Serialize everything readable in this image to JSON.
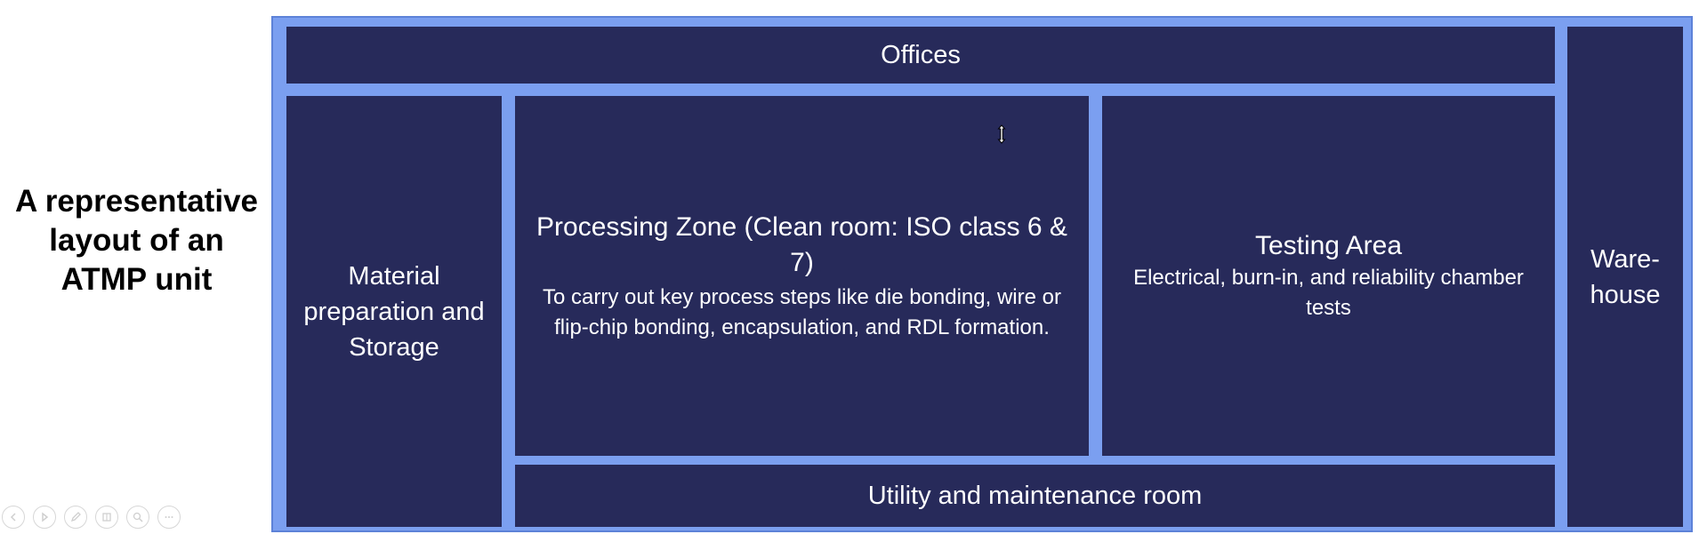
{
  "side_title": "A representative layout of an ATMP unit",
  "blocks": {
    "offices": "Offices",
    "material": "Material preparation and Storage",
    "processing": {
      "title": "Processing Zone (Clean room: ISO class 6 & 7)",
      "description": "To carry out key process steps like die bonding, wire or flip-chip bonding, encapsulation, and RDL formation."
    },
    "testing": {
      "title": "Testing Area",
      "description": "Electrical, burn-in, and reliability chamber tests"
    },
    "utility": "Utility and maintenance room",
    "warehouse": "Ware- house"
  },
  "controls": [
    "previous-icon",
    "play-icon",
    "pen-icon",
    "slides-icon",
    "zoom-icon",
    "more-icon"
  ]
}
